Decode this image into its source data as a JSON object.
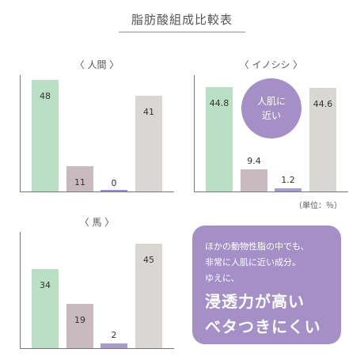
{
  "page_title": "脂肪酸組成比較表",
  "colors": {
    "green": "#b9dfc4",
    "mauve": "#c9bac0",
    "lavender": "#a99ccc",
    "gray": "#d9d7d3",
    "accent": "#a48fc6"
  },
  "chart_data": [
    {
      "type": "bar",
      "title": "〈 人間 〉",
      "values": [
        48,
        11,
        0,
        41
      ],
      "value_labels": [
        "48",
        "11",
        "0",
        "41"
      ],
      "ylim": [
        0,
        50
      ]
    },
    {
      "type": "bar",
      "title": "〈 イノシシ 〉",
      "values": [
        44.8,
        9.4,
        1.2,
        44.6
      ],
      "value_labels": [
        "44.8",
        "9.4",
        "1.2",
        "44.6"
      ],
      "ylim": [
        0,
        50
      ]
    },
    {
      "type": "bar",
      "title": "〈 馬 〉",
      "values": [
        34,
        19,
        2,
        45
      ],
      "value_labels": [
        "34",
        "19",
        "2",
        "45"
      ],
      "ylim": [
        0,
        50
      ]
    }
  ],
  "badge": {
    "line1": "人肌に",
    "line2": "近い"
  },
  "unit_note": "（単位：％）",
  "info_box": {
    "line1": "ほかの動物性脂の中でも、",
    "line2": "非常に人肌に近い成分。",
    "line3": "ゆえに、",
    "big1": "浸透力が高い",
    "big2": "ベタつきにくい"
  }
}
